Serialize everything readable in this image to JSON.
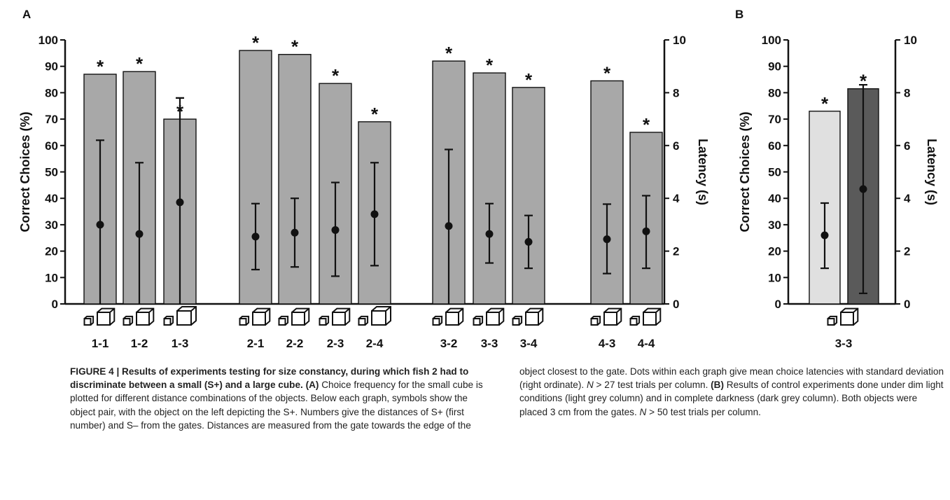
{
  "chart_data": [
    {
      "panel": "A",
      "type": "bar",
      "ylabel": "Correct Choices (%)",
      "y2label": "Latency (s)",
      "ylim": [
        0,
        100
      ],
      "y2lim": [
        0,
        10
      ],
      "yticks": [
        "0",
        "10",
        "20",
        "30",
        "40",
        "50",
        "60",
        "70",
        "80",
        "90",
        "100"
      ],
      "y2ticks": [
        "0",
        "2",
        "4",
        "6",
        "8",
        "10"
      ],
      "groups": [
        [
          "1-1",
          "1-2",
          "1-3"
        ],
        [
          "2-1",
          "2-2",
          "2-3",
          "2-4"
        ],
        [
          "3-2",
          "3-3",
          "3-4"
        ],
        [
          "4-3",
          "4-4"
        ]
      ],
      "categories": [
        "1-1",
        "1-2",
        "1-3",
        "2-1",
        "2-2",
        "2-3",
        "2-4",
        "3-2",
        "3-3",
        "3-4",
        "4-3",
        "4-4"
      ],
      "correct_choices": [
        87,
        88,
        70,
        96,
        94.5,
        83.5,
        69,
        92,
        87.5,
        82,
        84.5,
        65
      ],
      "bar_error_top": [
        null,
        null,
        78,
        null,
        null,
        null,
        null,
        null,
        null,
        null,
        null,
        null
      ],
      "significance": [
        "*",
        "*",
        "*",
        "*",
        "*",
        "*",
        "*",
        "*",
        "*",
        "*",
        "*",
        "*"
      ],
      "latency_mean": [
        3.0,
        2.65,
        3.85,
        2.55,
        2.7,
        2.8,
        3.4,
        2.95,
        2.65,
        2.35,
        2.45,
        2.75
      ],
      "latency_sd_low": [
        0,
        0,
        0,
        1.3,
        1.4,
        1.05,
        1.45,
        0,
        1.55,
        1.35,
        1.15,
        1.35
      ],
      "latency_sd_high": [
        6.2,
        5.35,
        7.8,
        3.8,
        4.0,
        4.6,
        5.35,
        5.85,
        3.8,
        3.35,
        3.78,
        4.1
      ],
      "bar_color": "#a8a8a8"
    },
    {
      "panel": "B",
      "type": "bar",
      "ylabel": "Correct Choices (%)",
      "y2label": "Latency (s)",
      "ylim": [
        0,
        100
      ],
      "y2lim": [
        0,
        10
      ],
      "yticks": [
        "0",
        "10",
        "20",
        "30",
        "40",
        "50",
        "60",
        "70",
        "80",
        "90",
        "100"
      ],
      "y2ticks": [
        "0",
        "2",
        "4",
        "6",
        "8",
        "10"
      ],
      "categories": [
        "3-3"
      ],
      "correct_choices": [
        73,
        81.5
      ],
      "significance": [
        "*",
        "*"
      ],
      "bar_colors": [
        "#e0e0e0",
        "#5a5a5a"
      ],
      "latency_mean": [
        2.6,
        4.35
      ],
      "latency_sd_low": [
        1.35,
        0.4
      ],
      "latency_sd_high": [
        3.82,
        8.3
      ]
    }
  ],
  "caption": {
    "heading": "FIGURE 4 | Results of experiments testing for size constancy, during which fish 2 had to discriminate between a small (S+) and a large cube.",
    "a_label": "(A)",
    "a_text": " Choice frequency for the small cube is plotted for different distance combinations of the objects. Below each graph, symbols show the object pair, with the object on the left depicting the S+. Numbers give the distances of S+ (first number) and S– from the gates. Distances are measured from the gate towards the edge of the object closest to the gate. Dots within each graph give mean choice latencies with standard deviation (right ordinate). ",
    "a_n": "N",
    "a_n_text": " > 27 test trials per column. ",
    "b_label": "(B)",
    "b_text": " Results of control experiments done under dim light conditions (light grey column) and in complete darkness (dark grey column). Both objects were placed 3 cm from the gates. ",
    "b_n": "N",
    "b_n_text": " > 50 test trials per column."
  }
}
